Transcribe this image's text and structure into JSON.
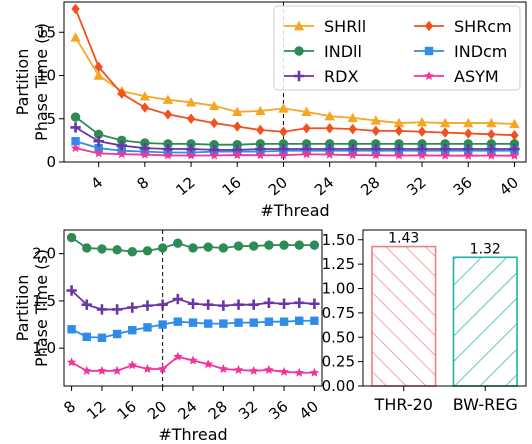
{
  "chart_data": [
    {
      "type": "line",
      "xlabel": "#Thread",
      "ylabel": [
        "Partition",
        "Phase Time (s)"
      ],
      "xlim": [
        1,
        41
      ],
      "ylim": [
        0,
        18.5
      ],
      "xticks": [
        4,
        8,
        12,
        16,
        20,
        24,
        28,
        32,
        36,
        40
      ],
      "yticks": [
        0,
        5,
        10,
        15
      ],
      "vline_x": 20,
      "legend_position": "top-right",
      "legend_columns": 2,
      "x": [
        2,
        4,
        6,
        8,
        10,
        12,
        14,
        16,
        18,
        20,
        22,
        24,
        26,
        28,
        30,
        32,
        34,
        36,
        38,
        40
      ],
      "series": [
        {
          "name": "SHRll",
          "color": "#f5a623",
          "marker": "triangle",
          "values": [
            14.4,
            10.0,
            8.2,
            7.6,
            7.2,
            6.9,
            6.5,
            5.8,
            5.9,
            6.2,
            5.8,
            5.3,
            5.1,
            4.8,
            4.5,
            4.6,
            4.5,
            4.5,
            4.5,
            4.4
          ]
        },
        {
          "name": "SHRcm",
          "color": "#f0511f",
          "marker": "diamond",
          "values": [
            17.7,
            11.0,
            7.9,
            6.3,
            5.5,
            5.0,
            4.5,
            4.1,
            3.7,
            3.5,
            3.9,
            3.9,
            3.8,
            3.6,
            3.6,
            3.5,
            3.4,
            3.3,
            3.2,
            3.1
          ]
        },
        {
          "name": "INDll",
          "color": "#2e8b57",
          "marker": "circle",
          "values": [
            5.2,
            3.2,
            2.5,
            2.2,
            2.1,
            2.1,
            2.0,
            2.0,
            2.1,
            2.1,
            2.1,
            2.1,
            2.1,
            2.1,
            2.1,
            2.1,
            2.1,
            2.1,
            2.1,
            2.1
          ]
        },
        {
          "name": "INDcm",
          "color": "#2f8ce8",
          "marker": "square",
          "values": [
            2.4,
            1.6,
            1.3,
            1.2,
            1.1,
            1.1,
            1.2,
            1.2,
            1.2,
            1.3,
            1.3,
            1.3,
            1.3,
            1.3,
            1.3,
            1.3,
            1.3,
            1.3,
            1.3,
            1.3
          ]
        },
        {
          "name": "RDX",
          "color": "#6a36a6",
          "marker": "plus",
          "values": [
            4.0,
            2.4,
            1.9,
            1.6,
            1.5,
            1.5,
            1.4,
            1.4,
            1.5,
            1.5,
            1.5,
            1.5,
            1.5,
            1.5,
            1.5,
            1.5,
            1.5,
            1.5,
            1.5,
            1.5
          ]
        },
        {
          "name": "ASYM",
          "color": "#f0359b",
          "marker": "star",
          "values": [
            1.6,
            1.0,
            0.9,
            0.85,
            0.76,
            0.75,
            0.75,
            0.8,
            0.78,
            0.78,
            0.9,
            0.85,
            0.8,
            0.78,
            0.75,
            0.76,
            0.74,
            0.73,
            0.74,
            0.73
          ]
        }
      ]
    },
    {
      "type": "line",
      "xlabel": "#Thread",
      "ylabel": [
        "Partition",
        "Phase Time (s)"
      ],
      "xlim": [
        7,
        41
      ],
      "ylim": [
        0.6,
        2.25
      ],
      "xticks": [
        8,
        12,
        16,
        20,
        24,
        28,
        32,
        36,
        40
      ],
      "yticks": [
        1.0,
        1.5,
        2.0
      ],
      "ytick_labels": [
        "1.0",
        "1.5",
        "2.0"
      ],
      "vline_x": 20,
      "x": [
        8,
        10,
        12,
        14,
        16,
        18,
        20,
        22,
        24,
        26,
        28,
        30,
        32,
        34,
        36,
        38,
        40
      ],
      "series": [
        {
          "color": "#2e8b57",
          "marker": "circle",
          "values": [
            2.17,
            2.06,
            2.05,
            2.04,
            2.02,
            2.03,
            2.06,
            2.11,
            2.06,
            2.07,
            2.06,
            2.08,
            2.08,
            2.09,
            2.09,
            2.09,
            2.09
          ]
        },
        {
          "color": "#6a36a6",
          "marker": "plus",
          "values": [
            1.61,
            1.46,
            1.41,
            1.41,
            1.43,
            1.45,
            1.46,
            1.52,
            1.47,
            1.46,
            1.45,
            1.46,
            1.46,
            1.48,
            1.47,
            1.48,
            1.47
          ]
        },
        {
          "color": "#2f8ce8",
          "marker": "square",
          "values": [
            1.2,
            1.12,
            1.11,
            1.15,
            1.19,
            1.22,
            1.25,
            1.28,
            1.27,
            1.26,
            1.26,
            1.27,
            1.27,
            1.28,
            1.28,
            1.29,
            1.29
          ]
        },
        {
          "color": "#f0359b",
          "marker": "star",
          "values": [
            0.85,
            0.76,
            0.76,
            0.76,
            0.82,
            0.78,
            0.78,
            0.91,
            0.87,
            0.83,
            0.78,
            0.77,
            0.76,
            0.77,
            0.75,
            0.74,
            0.74
          ]
        }
      ]
    },
    {
      "type": "bar",
      "categories": [
        "THR-20",
        "BW-REG"
      ],
      "values": [
        1.43,
        1.32
      ],
      "data_labels": [
        "1.43",
        "1.32"
      ],
      "colors": [
        "#f08080",
        "#20b2aa"
      ],
      "hatch": [
        "//",
        "\\\\"
      ],
      "ylim": [
        0,
        1.6
      ],
      "yticks": [
        0,
        0.25,
        0.5,
        0.75,
        1.0,
        1.25,
        1.5
      ],
      "ytick_labels": [
        "0.00",
        "0.25",
        "0.50",
        "0.75",
        "1.00",
        "1.25",
        "1.50"
      ]
    }
  ]
}
